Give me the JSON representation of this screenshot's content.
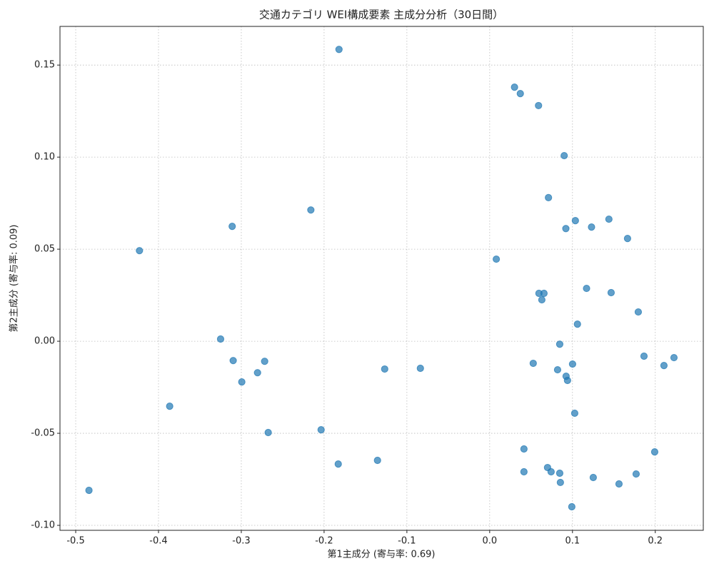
{
  "chart_data": {
    "type": "scatter",
    "title": "交通カテゴリ WEI構成要素 主成分分析（30日間）",
    "xlabel": "第1主成分 (寄与率: 0.69)",
    "ylabel": "第2主成分 (寄与率: 0.09)",
    "color": "#1f77b4",
    "grid": true,
    "xlim": [
      -0.519,
      0.258
    ],
    "ylim": [
      -0.1027,
      0.171
    ],
    "xticks": [
      -0.5,
      -0.4,
      -0.3,
      -0.2,
      -0.1,
      {
        "value": 0,
        "label": "0.0"
      },
      0.1,
      0.2
    ],
    "yticks": [
      {
        "value": -0.1,
        "label": "-0.10"
      },
      -0.05,
      {
        "value": 0,
        "label": "0.00"
      },
      0.05,
      {
        "value": 0.1,
        "label": "0.10"
      },
      0.15
    ],
    "x": [
      -0.182,
      0.03,
      0.037,
      0.059,
      0.09,
      0.071,
      -0.216,
      -0.311,
      0.1035,
      0.144,
      0.092,
      0.123,
      0.1665,
      -0.423,
      0.008,
      0.117,
      0.0595,
      0.0656,
      0.1467,
      0.063,
      0.1795,
      0.106,
      -0.325,
      0.0846,
      0.1864,
      0.2226,
      -0.3098,
      -0.2718,
      0.0526,
      0.1001,
      0.2105,
      -0.1268,
      -0.0837,
      -0.2804,
      0.082,
      0.0923,
      0.094,
      -0.2994,
      -0.3865,
      0.1027,
      -0.2036,
      -0.2675,
      0.0414,
      0.1993,
      -0.1355,
      -0.1829,
      0.0699,
      0.0414,
      0.0742,
      0.0846,
      0.1769,
      0.1251,
      0.0854,
      0.1562,
      -0.484,
      0.0992
    ],
    "values": [
      0.1585,
      0.138,
      0.1345,
      0.128,
      0.1008,
      0.078,
      0.0713,
      0.0624,
      0.0655,
      0.0663,
      0.0612,
      0.062,
      0.0558,
      0.0492,
      0.0446,
      0.0287,
      0.026,
      0.026,
      0.0264,
      0.0225,
      0.0159,
      0.0093,
      0.0012,
      -0.0016,
      -0.0081,
      -0.0089,
      -0.0105,
      -0.0109,
      -0.012,
      -0.0124,
      -0.0132,
      -0.0151,
      -0.0147,
      -0.0171,
      -0.0155,
      -0.019,
      -0.0213,
      -0.0221,
      -0.0353,
      -0.0391,
      -0.0481,
      -0.0496,
      -0.0585,
      -0.0601,
      -0.0647,
      -0.0667,
      -0.0686,
      -0.0709,
      -0.0709,
      -0.0717,
      -0.0721,
      -0.074,
      -0.0767,
      -0.0775,
      -0.081,
      -0.0899
    ]
  }
}
